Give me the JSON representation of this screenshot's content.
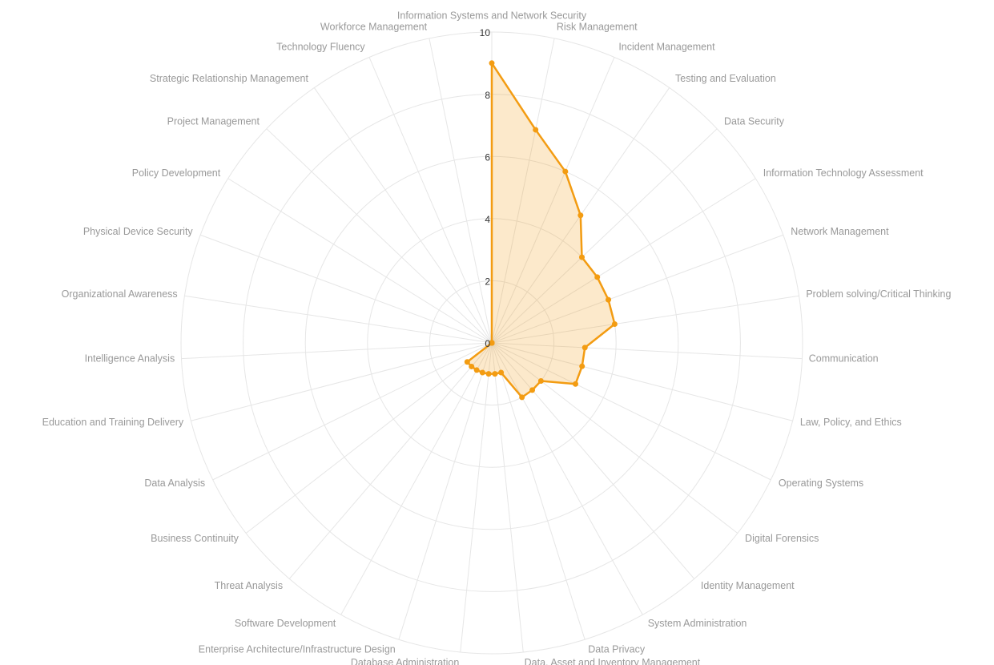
{
  "chart_data": {
    "type": "radar",
    "categories": [
      "Information Systems and Network Security",
      "Risk Management",
      "Incident Management",
      "Testing and Evaluation",
      "Data Security",
      "Information Technology Assessment",
      "Network Management",
      "Problem solving/Critical Thinking",
      "Communication",
      "Law, Policy, and Ethics",
      "Operating Systems",
      "Digital Forensics",
      "Identity Management",
      "System Administration",
      "Data Privacy",
      "Data, Asset and Inventory Management",
      "Database Administration",
      "Enterprise Architecture/Infrastructure Design",
      "Software Development",
      "Threat Analysis",
      "Business Continuity",
      "Data Analysis",
      "Education and Training Delivery",
      "Intelligence Analysis",
      "Organizational Awareness",
      "Physical Device Security",
      "Policy Development",
      "Project Management",
      "Strategic Relationship Management",
      "Technology Fluency",
      "Workforce Management"
    ],
    "values": [
      9,
      7,
      6,
      5,
      4,
      4,
      4,
      4,
      3,
      3,
      3,
      2,
      2,
      2,
      1,
      1,
      1,
      1,
      1,
      1,
      1,
      0,
      0,
      0,
      0,
      0,
      0,
      0,
      0,
      0,
      0
    ],
    "color": "#f39c12",
    "rlim": [
      0,
      10
    ],
    "rticks": [
      0,
      2,
      4,
      6,
      8,
      10
    ],
    "grid": true
  }
}
